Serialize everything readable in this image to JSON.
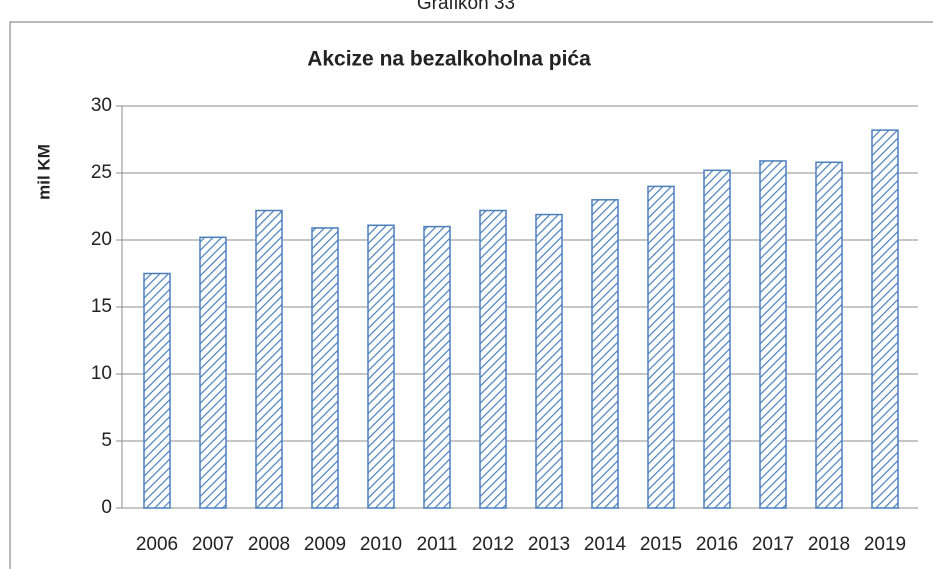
{
  "caption": "Grafikon 33",
  "chart_data": {
    "type": "bar",
    "title": "Akcize na bezalkoholna pića",
    "y_label": "mil KM",
    "categories": [
      "2006",
      "2007",
      "2008",
      "2009",
      "2010",
      "2011",
      "2012",
      "2013",
      "2014",
      "2015",
      "2016",
      "2017",
      "2018",
      "2019"
    ],
    "values": [
      17.5,
      20.2,
      22.2,
      20.9,
      21.1,
      21.0,
      22.2,
      21.9,
      23.0,
      24.0,
      25.2,
      25.9,
      25.8,
      28.2
    ],
    "color": "#4a7ebb",
    "ylim": [
      0,
      30
    ],
    "yticks": [
      0,
      5,
      10,
      15,
      20,
      25,
      30
    ],
    "grid": true
  }
}
